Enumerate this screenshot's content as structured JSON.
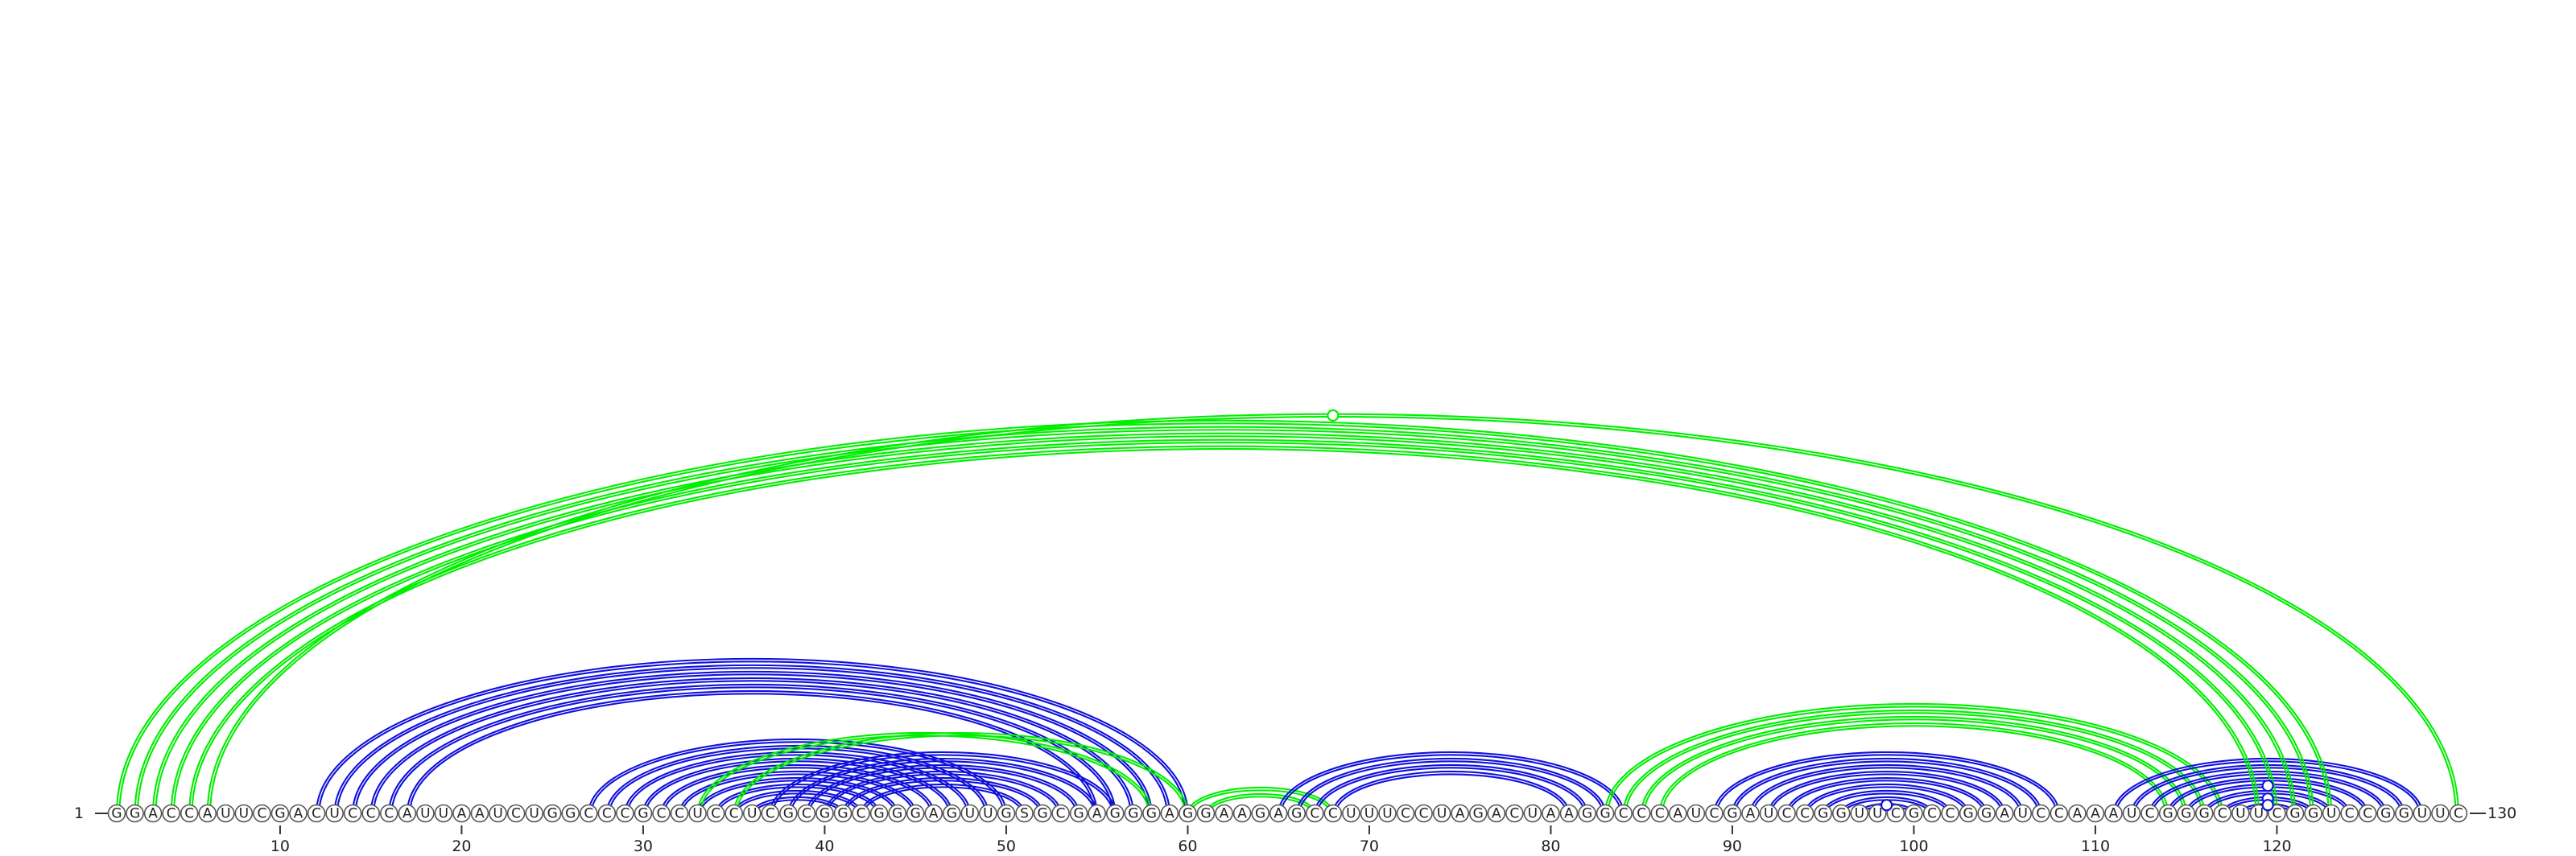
{
  "sequence": "GGACCAUUCGACUCCCAUUAAUCUGGCCCGCCUCCUCGCGGCGGGAGUUGSGCGAGGGAGGAAGAGCCUUUCCUAGACUAAGGCCCAUCGAUCCGGUUCGCCGGAUCCAAAUCGGGCUUCGGUCCGGUUC",
  "start_label": "1",
  "end_label": "130",
  "ticks": [
    "10",
    "20",
    "30",
    "40",
    "50",
    "60",
    "70",
    "80",
    "90",
    "100",
    "110",
    "120"
  ],
  "colors": {
    "blue": "#1010dd",
    "green": "#00ee00",
    "nucleotide_stroke": "#555555"
  },
  "arc_groups": [
    {
      "color": "blue",
      "side": "up",
      "pairs": [
        [
          12,
          60
        ],
        [
          13,
          59
        ],
        [
          14,
          58
        ],
        [
          15,
          57
        ],
        [
          16,
          56
        ],
        [
          17,
          55
        ]
      ]
    },
    {
      "color": "blue",
      "side": "up",
      "pairs": [
        [
          27,
          50
        ],
        [
          28,
          49
        ],
        [
          29,
          48
        ],
        [
          30,
          47
        ],
        [
          31,
          46
        ],
        [
          32,
          45
        ],
        [
          33,
          44
        ],
        [
          34,
          43
        ],
        [
          35,
          42
        ],
        [
          36,
          41
        ]
      ]
    },
    {
      "color": "blue",
      "side": "up",
      "pairs": [
        [
          37,
          56
        ],
        [
          38,
          55
        ],
        [
          39,
          54
        ],
        [
          40,
          53
        ],
        [
          41,
          52
        ],
        [
          42,
          51
        ]
      ]
    },
    {
      "color": "green",
      "side": "up",
      "pairs": [
        [
          33,
          58
        ],
        [
          35,
          60
        ]
      ]
    },
    {
      "color": "green",
      "side": "up",
      "pairs": [
        [
          60,
          68
        ],
        [
          61,
          67
        ]
      ]
    },
    {
      "color": "blue",
      "side": "up",
      "pairs": [
        [
          65,
          84
        ],
        [
          66,
          83
        ],
        [
          67,
          82
        ],
        [
          68,
          81
        ]
      ]
    },
    {
      "color": "green",
      "side": "up",
      "pairs": [
        [
          83,
          117
        ],
        [
          84,
          116
        ],
        [
          85,
          115
        ],
        [
          86,
          114
        ]
      ]
    },
    {
      "color": "blue",
      "side": "up",
      "pairs": [
        [
          89,
          108
        ],
        [
          90,
          107
        ],
        [
          91,
          106
        ],
        [
          92,
          105
        ],
        [
          93,
          104
        ],
        [
          94,
          103
        ],
        [
          95,
          102
        ],
        [
          96,
          101
        ],
        [
          97,
          100
        ]
      ]
    },
    {
      "color": "blue",
      "side": "up",
      "pairs": [
        [
          111,
          128
        ],
        [
          112,
          127
        ],
        [
          113,
          126
        ],
        [
          114,
          125
        ],
        [
          115,
          124
        ],
        [
          116,
          123
        ],
        [
          117,
          122
        ],
        [
          118,
          121
        ]
      ]
    },
    {
      "color": "green",
      "side": "up",
      "pairs": [
        [
          1,
          123
        ],
        [
          2,
          122
        ],
        [
          3,
          121
        ],
        [
          4,
          120
        ],
        [
          5,
          119
        ],
        [
          6,
          130
        ]
      ]
    }
  ],
  "markers": [
    {
      "color": "green",
      "pair": [
        6,
        130
      ]
    },
    {
      "color": "blue",
      "pair": [
        97,
        100
      ]
    },
    {
      "color": "blue",
      "pair": [
        115,
        124
      ]
    },
    {
      "color": "blue",
      "pair": [
        117,
        122
      ]
    },
    {
      "color": "blue",
      "pair": [
        118,
        121
      ]
    }
  ]
}
